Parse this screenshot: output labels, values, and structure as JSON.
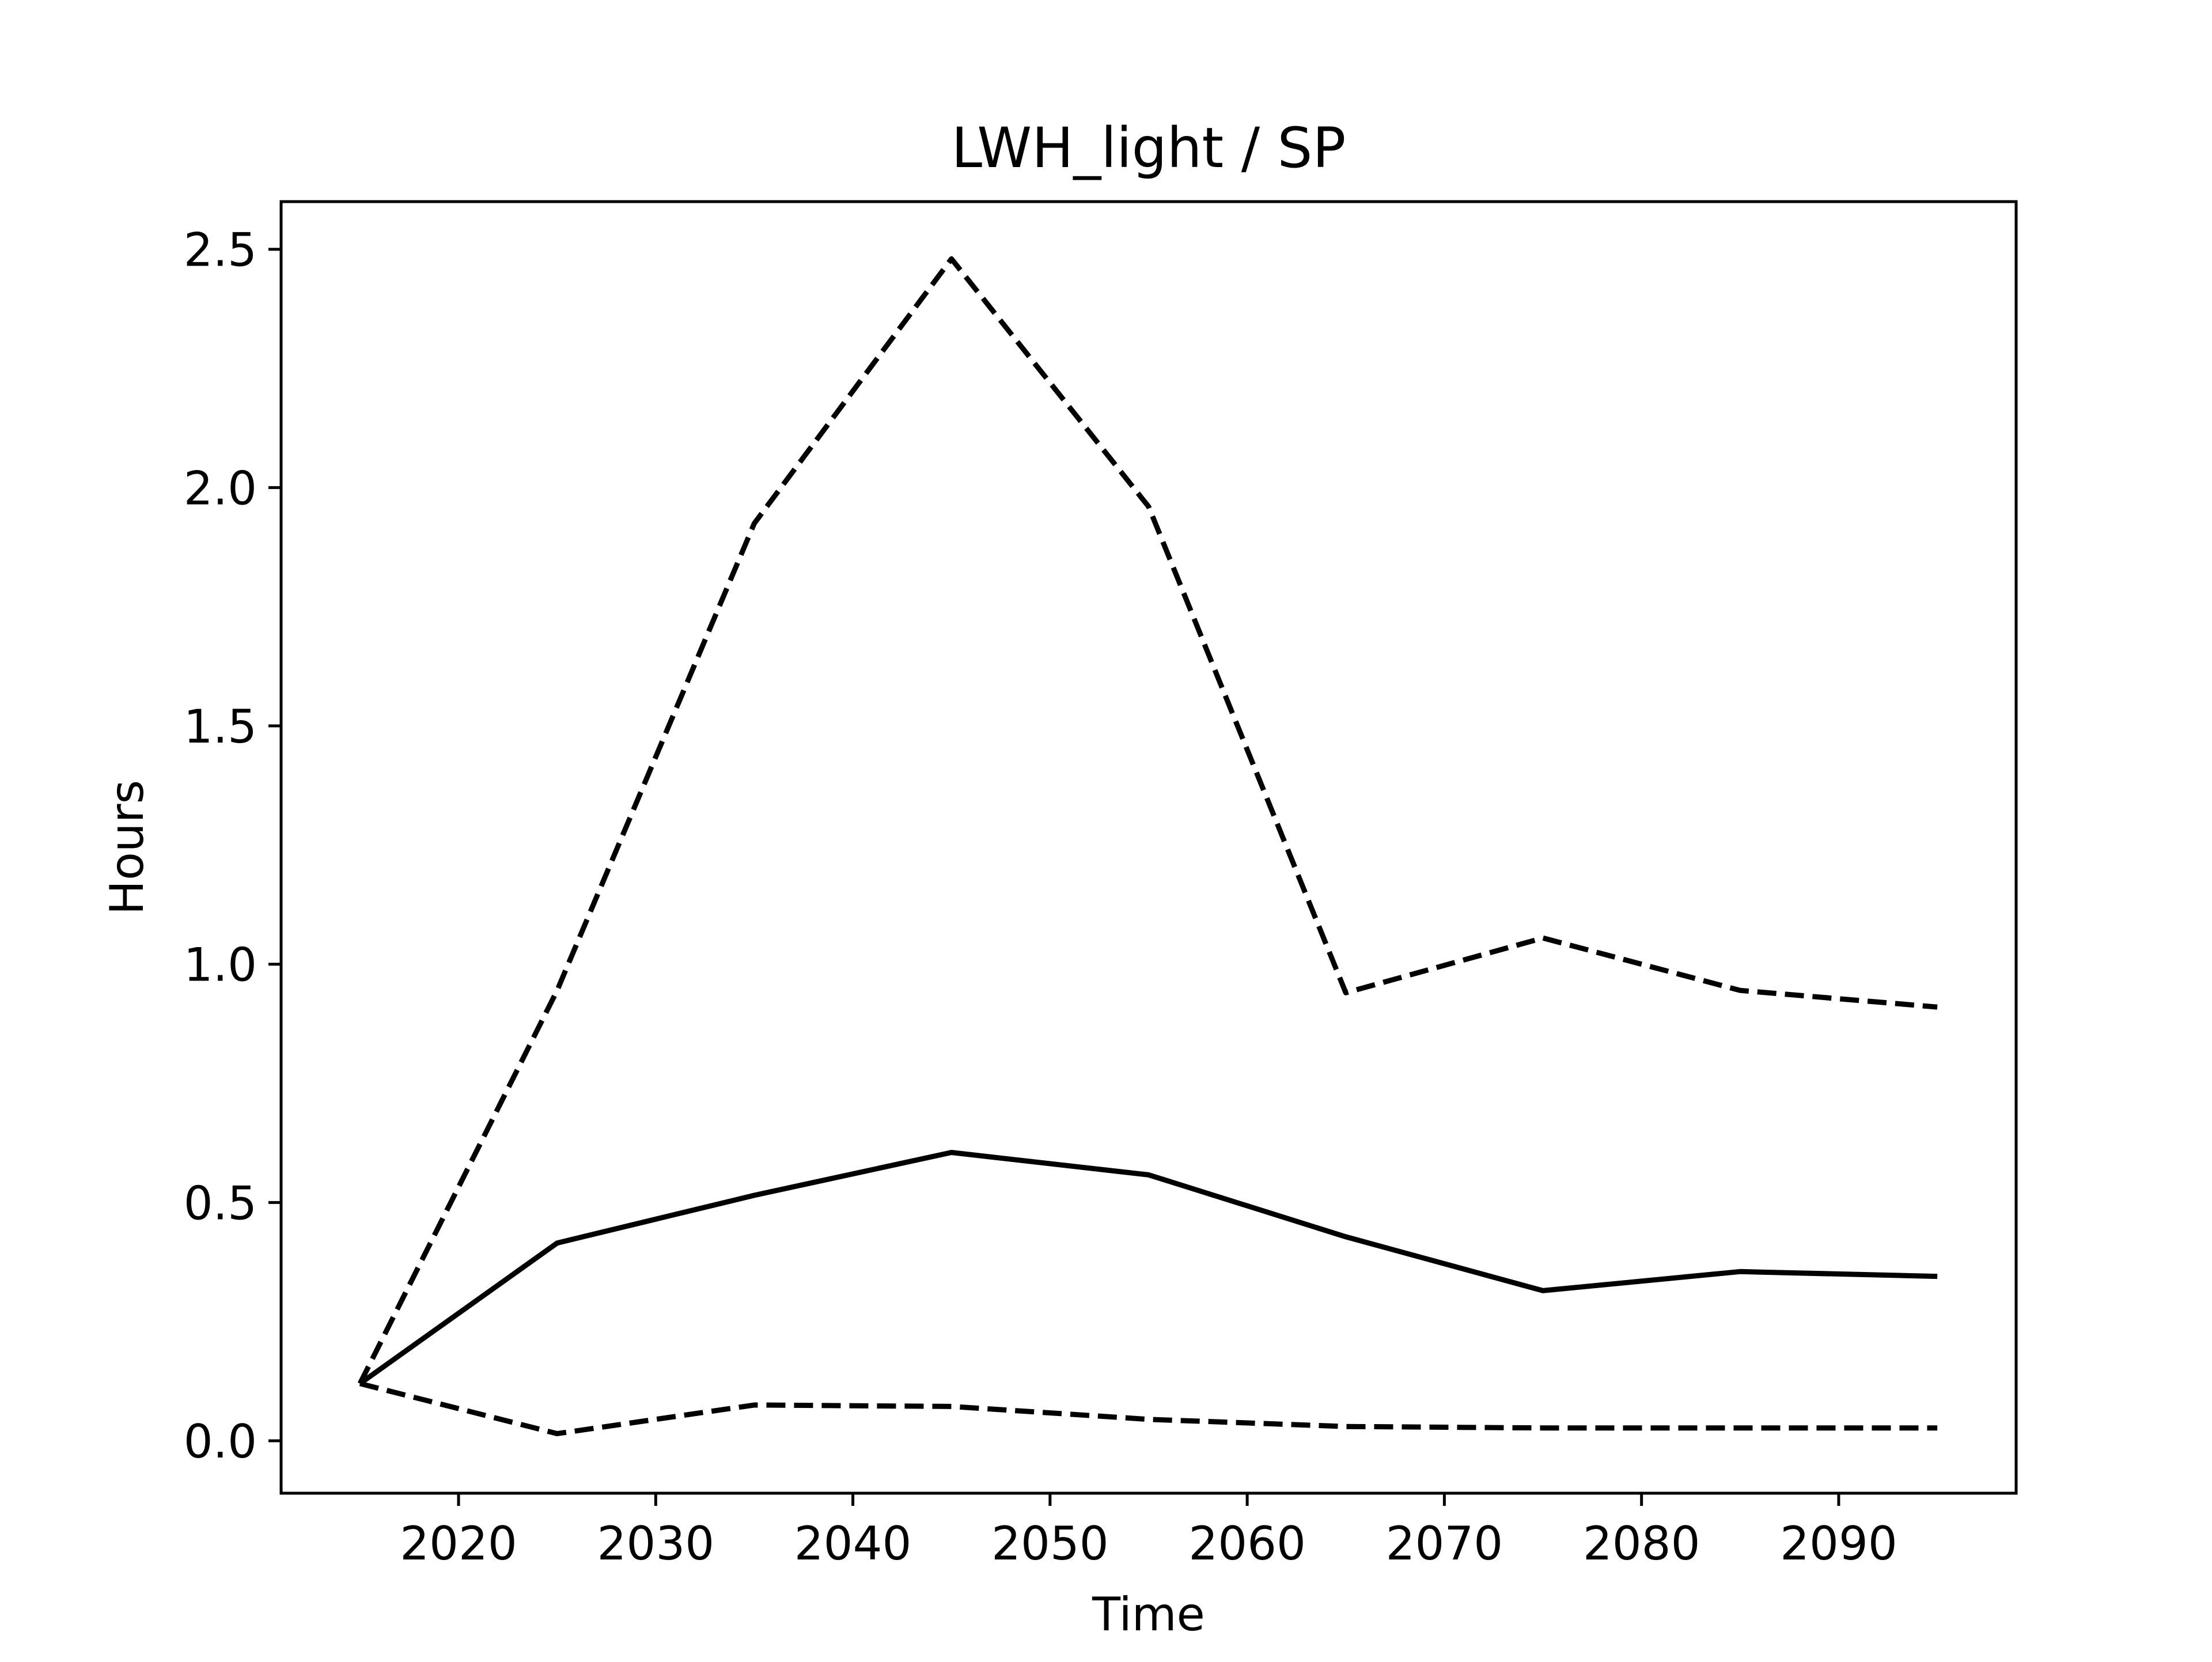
{
  "chart_data": {
    "type": "line",
    "title": "LWH_light / SP",
    "xlabel": "Time",
    "ylabel": "Hours",
    "xlim": [
      2011,
      2099
    ],
    "ylim": [
      -0.11,
      2.6
    ],
    "xticks": [
      2020,
      2030,
      2040,
      2050,
      2060,
      2070,
      2080,
      2090
    ],
    "yticks": [
      0.0,
      0.5,
      1.0,
      1.5,
      2.0,
      2.5
    ],
    "ytick_labels": [
      "0.0",
      "0.5",
      "1.0",
      "1.5",
      "2.0",
      "2.5"
    ],
    "grid": false,
    "legend": null,
    "x": [
      2015,
      2025,
      2035,
      2045,
      2055,
      2065,
      2075,
      2085,
      2095
    ],
    "series": [
      {
        "style": "solid",
        "color": "#000000",
        "values": [
          0.12,
          0.415,
          0.515,
          0.605,
          0.558,
          0.428,
          0.315,
          0.355,
          0.345
        ]
      },
      {
        "style": "dashed",
        "color": "#000000",
        "values": [
          0.12,
          0.945,
          1.925,
          2.48,
          1.96,
          0.94,
          1.055,
          0.945,
          0.91
        ]
      },
      {
        "style": "dashed",
        "color": "#000000",
        "values": [
          0.12,
          0.015,
          0.075,
          0.072,
          0.045,
          0.03,
          0.027,
          0.027,
          0.027
        ]
      }
    ]
  }
}
